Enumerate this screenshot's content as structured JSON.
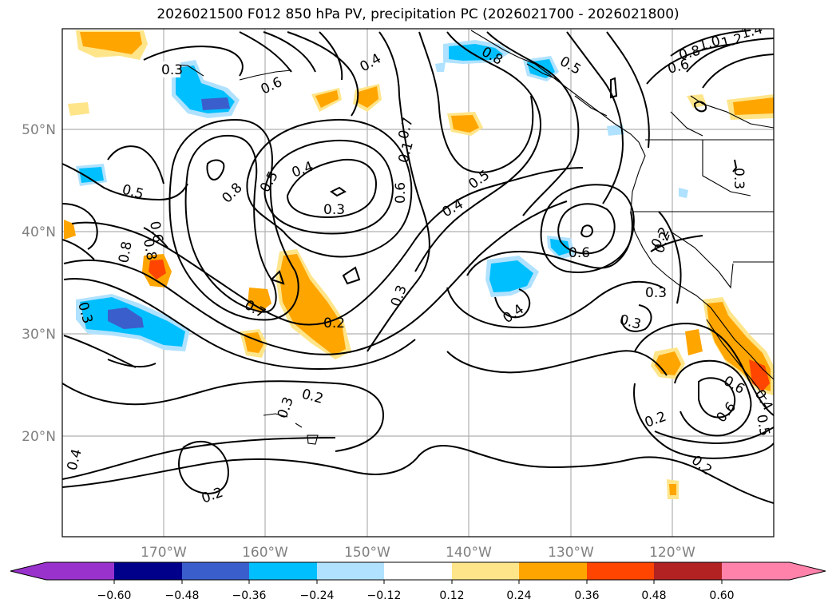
{
  "title": "2026021500 F012 850 hPa PV, precipitation PC (2026021700 - 2026021800)",
  "map": {
    "lat_labels": [
      "50°N",
      "40°N",
      "30°N",
      "20°N"
    ],
    "lon_labels": [
      "170°W",
      "160°W",
      "150°W",
      "140°W",
      "130°W",
      "120°W"
    ],
    "contour_labels": [
      "0.3",
      "0.2",
      "0.6",
      "0.4",
      "0.8",
      "0.5",
      "1.2",
      "1.4",
      "1.0",
      "0.8",
      "0.6",
      "0.5",
      "0.8",
      "0.7",
      "0.6",
      "0.4",
      "0.5",
      "0.4",
      "0.3",
      "0.5",
      "0.8",
      "0.8",
      "0.6",
      "0.6",
      "0.1",
      "0.3",
      "0.3",
      "0.7",
      "0.3",
      "0.4",
      "0.6",
      "0.2",
      "0.3",
      "0.3",
      "0.2",
      "0.2",
      "0.4",
      "0.6",
      "0.5",
      "0.2",
      "0.2",
      "0.4",
      "0.3",
      "0.2"
    ]
  },
  "colorbar": {
    "ticks": [
      "−0.60",
      "−0.48",
      "−0.36",
      "−0.24",
      "−0.12",
      "0.12",
      "0.24",
      "0.36",
      "0.48",
      "0.60"
    ],
    "colors": {
      "below": "#9932CC",
      "neg060": "#00008B",
      "neg048": "#3A5FCD",
      "neg036": "#00BFFF",
      "neg024": "#B0E2FF",
      "zero": "#FFFFFF",
      "pos012": "#FFE58A",
      "pos024": "#FFA500",
      "pos036": "#FF4500",
      "pos048": "#B22222",
      "above": "#FF82AB"
    }
  }
}
